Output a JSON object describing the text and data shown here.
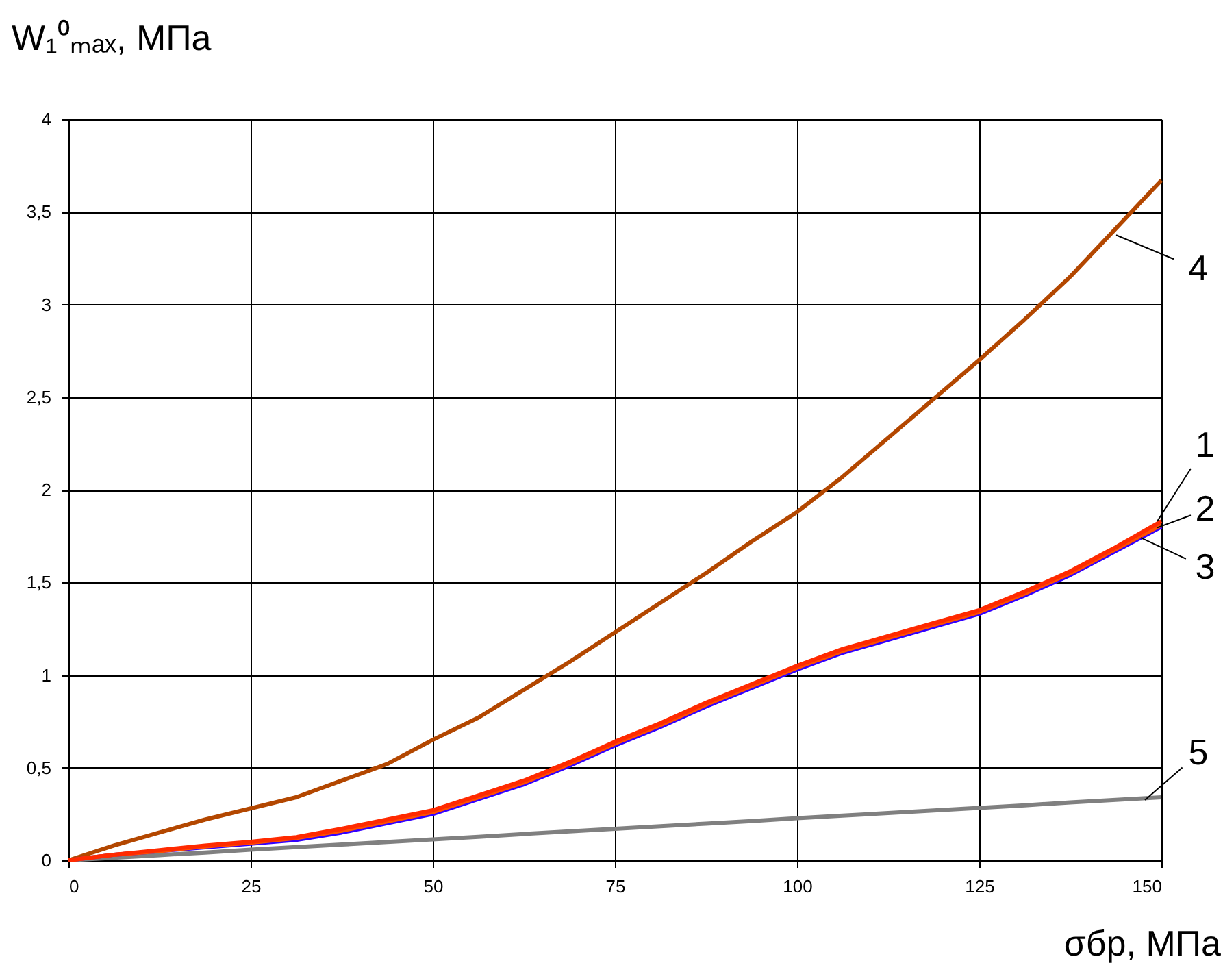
{
  "chart_data": {
    "type": "line",
    "xlabel": "σбр, МПа",
    "ylabel": "W₁⁰ₘₐₓ, МПа",
    "xlim": [
      0,
      150
    ],
    "xticks": [
      0,
      25,
      50,
      75,
      100,
      125,
      150
    ],
    "ylim": [
      0,
      4
    ],
    "yticks": [
      0,
      {
        "value": 0.5,
        "label": "0,5"
      },
      1,
      {
        "value": 1.5,
        "label": "1,5"
      },
      2,
      {
        "value": 2.5,
        "label": "2,5"
      },
      3,
      {
        "value": 3.5,
        "label": "3,5"
      },
      4
    ],
    "grid": true,
    "marker": "none",
    "line_style": "solid",
    "x": [
      0,
      6.25,
      12.5,
      18.75,
      25,
      31.25,
      37.5,
      43.75,
      50,
      56.25,
      62.5,
      68.75,
      75,
      81.25,
      87.5,
      93.75,
      100,
      106.25,
      112.5,
      118.75,
      125,
      131.25,
      137.5,
      143.75,
      150
    ],
    "series": [
      {
        "name": "5",
        "color": "#808080",
        "values": [
          0,
          0.014,
          0.028,
          0.042,
          0.057,
          0.071,
          0.085,
          0.099,
          0.113,
          0.127,
          0.142,
          0.156,
          0.17,
          0.184,
          0.198,
          0.212,
          0.227,
          0.241,
          0.255,
          0.269,
          0.283,
          0.297,
          0.312,
          0.326,
          0.34
        ]
      },
      {
        "name": "4",
        "color": "#b34700",
        "values": [
          0,
          0.08,
          0.15,
          0.22,
          0.28,
          0.34,
          0.43,
          0.52,
          0.65,
          0.77,
          0.92,
          1.07,
          1.23,
          1.39,
          1.55,
          1.72,
          1.88,
          2.07,
          2.28,
          2.49,
          2.7,
          2.92,
          3.15,
          3.41,
          3.67
        ]
      },
      {
        "name": "3",
        "color": "#3300ff",
        "values": [
          0,
          0.03,
          0.05,
          0.07,
          0.09,
          0.11,
          0.15,
          0.2,
          0.25,
          0.33,
          0.41,
          0.51,
          0.62,
          0.72,
          0.83,
          0.93,
          1.03,
          1.12,
          1.19,
          1.26,
          1.33,
          1.43,
          1.54,
          1.67,
          1.8
        ]
      },
      {
        "name": "2",
        "color": "#ff5000",
        "values": [
          0,
          0.03,
          0.05,
          0.075,
          0.095,
          0.12,
          0.16,
          0.21,
          0.26,
          0.34,
          0.42,
          0.52,
          0.63,
          0.73,
          0.84,
          0.94,
          1.04,
          1.13,
          1.2,
          1.27,
          1.34,
          1.44,
          1.55,
          1.68,
          1.81
        ]
      },
      {
        "name": "1",
        "color": "#ff2a00",
        "values": [
          0,
          0.03,
          0.055,
          0.08,
          0.1,
          0.125,
          0.17,
          0.22,
          0.27,
          0.35,
          0.43,
          0.53,
          0.64,
          0.74,
          0.85,
          0.95,
          1.05,
          1.14,
          1.21,
          1.28,
          1.35,
          1.45,
          1.56,
          1.69,
          1.83
        ]
      }
    ]
  }
}
